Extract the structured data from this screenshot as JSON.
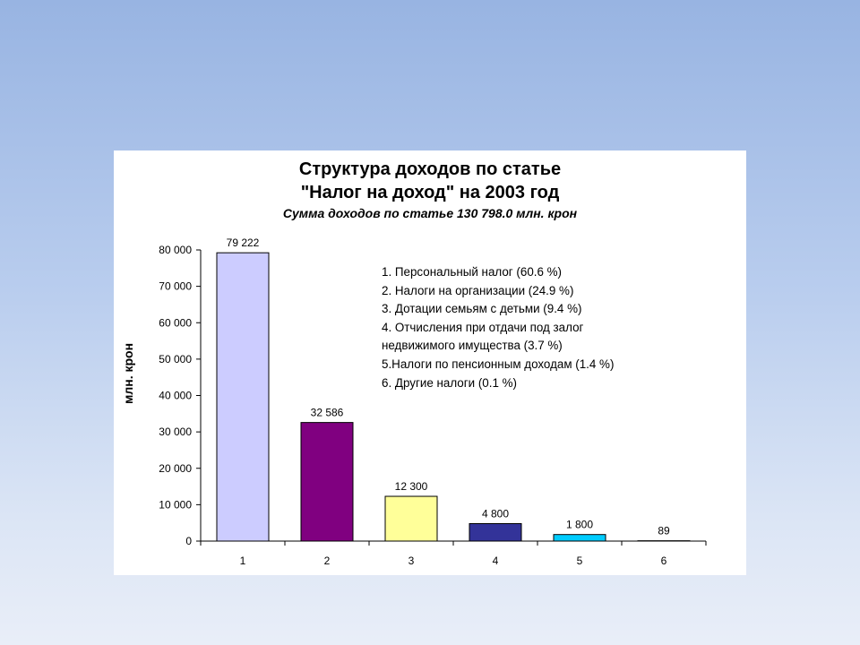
{
  "chart_data": {
    "type": "bar",
    "title_lines": [
      "Структура  доходов по статье",
      "\"Налог на доход\" на 2003 год"
    ],
    "subtitle": "Сумма доходов по статье  130 798.0 млн. крон",
    "xlabel": "",
    "ylabel": "млн. крон",
    "ylim": [
      0,
      80000
    ],
    "yticks": [
      0,
      10000,
      20000,
      30000,
      40000,
      50000,
      60000,
      70000,
      80000
    ],
    "ytick_labels": [
      "0",
      "10 000",
      "20 000",
      "30 000",
      "40 000",
      "50 000",
      "60 000",
      "70 000",
      "80 000"
    ],
    "categories": [
      "1",
      "2",
      "3",
      "4",
      "5",
      "6"
    ],
    "values": [
      79222,
      32586,
      12300,
      4800,
      1800,
      89
    ],
    "data_labels": [
      "79 222",
      "32 586",
      "12 300",
      "4 800",
      "1 800",
      "89"
    ],
    "colors": [
      "#ccccff",
      "#800080",
      "#ffff99",
      "#333399",
      "#00ccff",
      "#ffffff"
    ],
    "grid": false,
    "legend_placement": "top-right",
    "legend_lines": [
      "1. Персональный налог  (60.6 %)",
      "2. Налоги на организации (24.9 %)",
      "3. Дотации семьям с детьми (9.4 %)",
      "4. Отчисления при отдачи под залог",
      "недвижимого имущества (3.7 %)",
      "5.Налоги по пенсионным доходам (1.4 %)",
      "6. Другие налоги (0.1 %)"
    ]
  }
}
